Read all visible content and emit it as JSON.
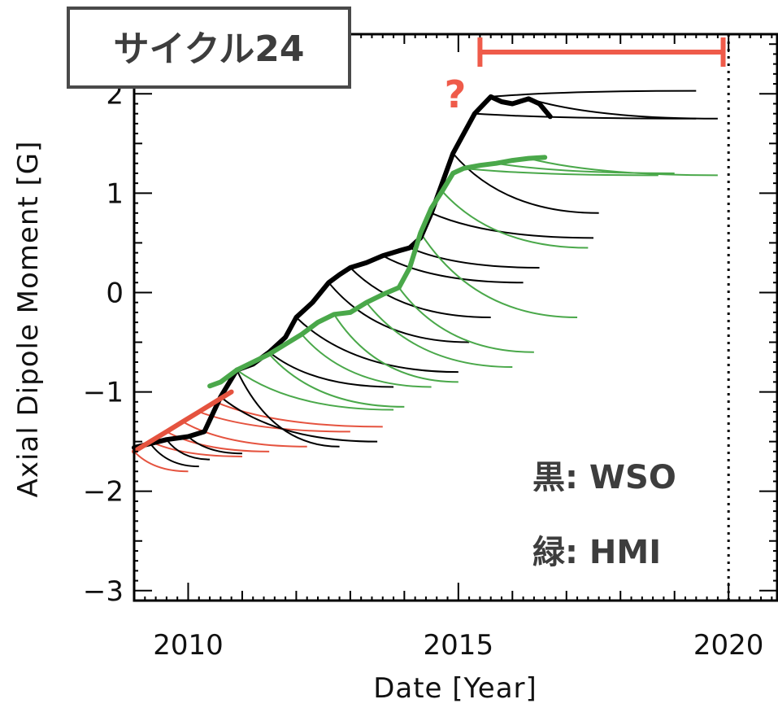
{
  "chart_data": {
    "type": "line",
    "title": "サイクル24",
    "xlabel": "Date [Year]",
    "ylabel": "Axial Dipole Moment [G]",
    "xlim": [
      2009.0,
      2020.9
    ],
    "ylim": [
      -3.1,
      2.6
    ],
    "x_ticks": [
      2010,
      2015,
      2020
    ],
    "x_tick_labels": [
      "2010",
      "2015",
      "2020"
    ],
    "y_ticks": [
      -3,
      -2,
      -1,
      0,
      1,
      2
    ],
    "y_tick_labels": [
      "−3",
      "−2",
      "−1",
      "0",
      "1",
      "2"
    ],
    "grid": false,
    "colors": {
      "wso": "#000000",
      "hmi": "#4aa84a",
      "early": "#e5533f",
      "text": "#3d3d3d",
      "range": "#ef5b4a"
    },
    "reference_lines": [
      {
        "x": 2020.0,
        "style": "dotted"
      }
    ],
    "range_annotation": {
      "label": "?",
      "x_start": 2015.4,
      "x_end": 2019.9,
      "y": 2.42
    },
    "legend": {
      "placement": "bottom-right",
      "entries": [
        "黒: WSO",
        "緑: HMI"
      ]
    },
    "series": [
      {
        "name": "WSO",
        "color": "#000000",
        "x": [
          2009.0,
          2009.3,
          2009.6,
          2010.0,
          2010.3,
          2010.6,
          2010.9,
          2011.2,
          2011.5,
          2011.8,
          2012.0,
          2012.3,
          2012.6,
          2012.8,
          2013.0,
          2013.3,
          2013.6,
          2013.9,
          2014.1,
          2014.3,
          2014.5,
          2014.7,
          2014.9,
          2015.1,
          2015.3,
          2015.6,
          2015.8,
          2016.0,
          2016.3,
          2016.5,
          2016.7
        ],
        "y": [
          -1.56,
          -1.52,
          -1.48,
          -1.45,
          -1.4,
          -1.05,
          -0.78,
          -0.72,
          -0.6,
          -0.45,
          -0.25,
          -0.1,
          0.1,
          0.18,
          0.25,
          0.3,
          0.37,
          0.42,
          0.45,
          0.55,
          0.8,
          1.1,
          1.4,
          1.6,
          1.8,
          1.97,
          1.92,
          1.9,
          1.95,
          1.9,
          1.77
        ]
      },
      {
        "name": "HMI",
        "color": "#4aa84a",
        "x": [
          2010.4,
          2010.6,
          2010.9,
          2011.2,
          2011.5,
          2011.8,
          2012.1,
          2012.4,
          2012.7,
          2013.0,
          2013.3,
          2013.6,
          2013.9,
          2014.1,
          2014.3,
          2014.5,
          2014.7,
          2014.9,
          2015.1,
          2015.4,
          2015.7,
          2016.0,
          2016.3,
          2016.6
        ],
        "y": [
          -0.94,
          -0.9,
          -0.78,
          -0.7,
          -0.62,
          -0.52,
          -0.42,
          -0.3,
          -0.22,
          -0.2,
          -0.1,
          -0.02,
          0.05,
          0.25,
          0.6,
          0.85,
          1.02,
          1.2,
          1.25,
          1.28,
          1.3,
          1.33,
          1.35,
          1.36
        ]
      },
      {
        "name": "early",
        "color": "#e5533f",
        "x": [
          2009.0,
          2009.3,
          2009.6,
          2009.9,
          2010.2,
          2010.5,
          2010.8
        ],
        "y": [
          -1.6,
          -1.5,
          -1.4,
          -1.3,
          -1.2,
          -1.1,
          -1.0
        ]
      }
    ],
    "wso_predictions": [
      {
        "x0": 2009.3,
        "y0": -1.52,
        "x1": 2010.2,
        "y1": -1.75
      },
      {
        "x0": 2009.6,
        "y0": -1.48,
        "x1": 2010.4,
        "y1": -1.68
      },
      {
        "x0": 2010.0,
        "y0": -1.45,
        "x1": 2011.0,
        "y1": -1.62
      },
      {
        "x0": 2010.6,
        "y0": -1.05,
        "x1": 2013.5,
        "y1": -1.5
      },
      {
        "x0": 2010.9,
        "y0": -0.78,
        "x1": 2012.8,
        "y1": -1.55
      },
      {
        "x0": 2011.5,
        "y0": -0.6,
        "x1": 2013.8,
        "y1": -0.95
      },
      {
        "x0": 2012.0,
        "y0": -0.25,
        "x1": 2015.0,
        "y1": -0.8
      },
      {
        "x0": 2012.6,
        "y0": 0.1,
        "x1": 2015.2,
        "y1": -0.5
      },
      {
        "x0": 2013.0,
        "y0": 0.25,
        "x1": 2015.6,
        "y1": -0.25
      },
      {
        "x0": 2013.6,
        "y0": 0.37,
        "x1": 2016.2,
        "y1": 0.1
      },
      {
        "x0": 2014.1,
        "y0": 0.45,
        "x1": 2016.5,
        "y1": 0.25
      },
      {
        "x0": 2014.5,
        "y0": 0.8,
        "x1": 2017.5,
        "y1": 0.55
      },
      {
        "x0": 2014.9,
        "y0": 1.4,
        "x1": 2017.6,
        "y1": 0.8
      },
      {
        "x0": 2015.3,
        "y0": 1.8,
        "x1": 2019.4,
        "y1": 1.75
      },
      {
        "x0": 2015.6,
        "y0": 1.97,
        "x1": 2019.4,
        "y1": 2.03
      },
      {
        "x0": 2016.3,
        "y0": 1.95,
        "x1": 2019.8,
        "y1": 1.75
      }
    ],
    "hmi_predictions": [
      {
        "x0": 2010.9,
        "y0": -0.78,
        "x1": 2013.8,
        "y1": -1.18
      },
      {
        "x0": 2011.5,
        "y0": -0.62,
        "x1": 2014.0,
        "y1": -1.15
      },
      {
        "x0": 2012.1,
        "y0": -0.42,
        "x1": 2014.5,
        "y1": -0.95
      },
      {
        "x0": 2012.7,
        "y0": -0.22,
        "x1": 2015.0,
        "y1": -0.9
      },
      {
        "x0": 2013.3,
        "y0": -0.1,
        "x1": 2016.0,
        "y1": -0.75
      },
      {
        "x0": 2013.9,
        "y0": 0.05,
        "x1": 2016.4,
        "y1": -0.6
      },
      {
        "x0": 2014.3,
        "y0": 0.6,
        "x1": 2017.2,
        "y1": -0.25
      },
      {
        "x0": 2014.7,
        "y0": 1.02,
        "x1": 2017.4,
        "y1": 0.45
      },
      {
        "x0": 2015.1,
        "y0": 1.25,
        "x1": 2018.7,
        "y1": 1.18
      },
      {
        "x0": 2015.7,
        "y0": 1.3,
        "x1": 2019.0,
        "y1": 1.2
      },
      {
        "x0": 2016.3,
        "y0": 1.35,
        "x1": 2019.8,
        "y1": 1.18
      }
    ],
    "early_predictions": [
      {
        "x0": 2009.0,
        "y0": -1.6,
        "x1": 2010.0,
        "y1": -1.8
      },
      {
        "x0": 2009.3,
        "y0": -1.5,
        "x1": 2011.0,
        "y1": -1.65
      },
      {
        "x0": 2009.6,
        "y0": -1.4,
        "x1": 2011.5,
        "y1": -1.6
      },
      {
        "x0": 2009.9,
        "y0": -1.3,
        "x1": 2012.2,
        "y1": -1.55
      },
      {
        "x0": 2010.2,
        "y0": -1.2,
        "x1": 2013.0,
        "y1": -1.4
      },
      {
        "x0": 2010.5,
        "y0": -1.1,
        "x1": 2013.6,
        "y1": -1.35
      }
    ]
  }
}
